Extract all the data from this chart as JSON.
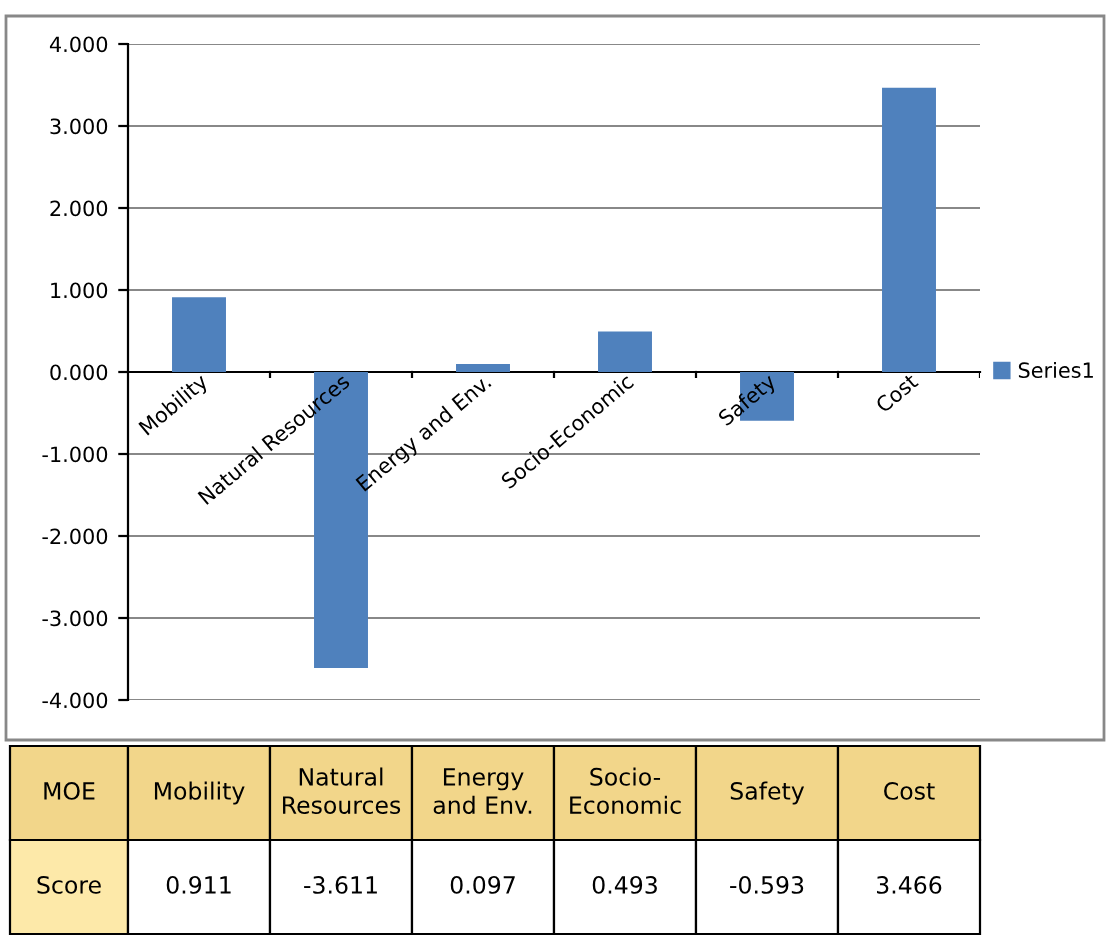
{
  "chart_data": {
    "type": "bar",
    "categories": [
      "Mobility",
      "Natural Resources",
      "Energy and Env.",
      "Socio-Economic",
      "Safety",
      "Cost"
    ],
    "series": [
      {
        "name": "Series1",
        "color": "#4f81bd",
        "values": [
          0.911,
          -3.611,
          0.097,
          0.493,
          -0.593,
          3.466
        ],
        "value_labels": [
          "0.911",
          "-3.611",
          "0.097",
          "0.493",
          "-0.593",
          "3.466"
        ]
      }
    ],
    "ylim": [
      -4,
      4
    ],
    "yticks": [
      {
        "value": -4,
        "label": "-4.000"
      },
      {
        "value": -3,
        "label": "-3.000"
      },
      {
        "value": -2,
        "label": "-2.000"
      },
      {
        "value": -1,
        "label": "-1.000"
      },
      {
        "value": 0,
        "label": "0.000"
      },
      {
        "value": 1,
        "label": "1.000"
      },
      {
        "value": 2,
        "label": "2.000"
      },
      {
        "value": 3,
        "label": "3.000"
      },
      {
        "value": 4,
        "label": "4.000"
      }
    ],
    "grid": "y",
    "legend": "right",
    "annotations": [
      "MOE",
      "Score"
    ]
  }
}
